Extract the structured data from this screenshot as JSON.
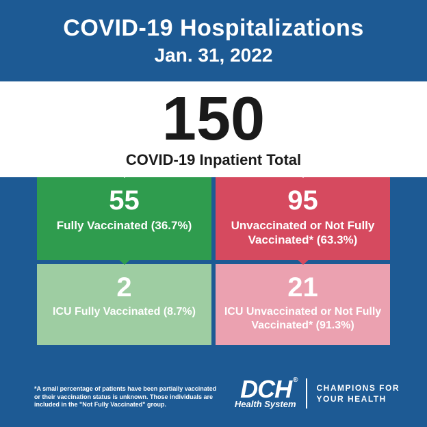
{
  "colors": {
    "page_bg": "#1d5a94",
    "band_bg": "#ffffff",
    "text_dark": "#1a1a1a",
    "text_light": "#ffffff",
    "vax_bg": "#2f9c4e",
    "unvax_bg": "#d64a5f",
    "icu_vax_bg": "#9ecda2",
    "icu_unvax_bg": "#eba1b0"
  },
  "header": {
    "title": "COVID-19 Hospitalizations",
    "date": "Jan. 31, 2022"
  },
  "total": {
    "value": "150",
    "label": "COVID-19 Inpatient Total"
  },
  "boxes": {
    "vax": {
      "num": "55",
      "label": "Fully Vaccinated (36.7%)"
    },
    "unvax": {
      "num": "95",
      "label": "Unvaccinated or Not Fully Vaccinated* (63.3%)"
    },
    "icu_vax": {
      "num": "2",
      "label": "ICU Fully Vaccinated (8.7%)"
    },
    "icu_unvax": {
      "num": "21",
      "label": "ICU Unvaccinated or Not Fully Vaccinated* (91.3%)"
    }
  },
  "footnote": "*A small percentage of patients have been partially vaccinated or their vaccination status is unknown. Those individuals are included in the \"Not Fully Vaccinated\" group.",
  "logo": {
    "main": "DCH",
    "registered": "®",
    "sub": "Health System",
    "tagline_l1": "CHAMPIONS FOR",
    "tagline_l2": "YOUR HEALTH"
  }
}
